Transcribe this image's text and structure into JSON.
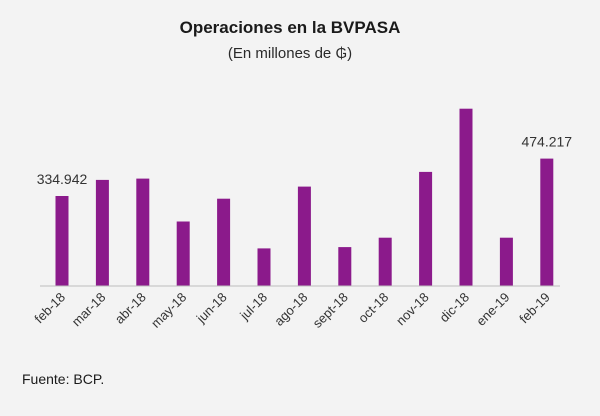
{
  "chart_data": {
    "type": "bar",
    "title": "Operaciones en la BVPASA",
    "subtitle": "(En millones de ₲)",
    "xlabel": "",
    "ylabel": "",
    "categories": [
      "feb-18",
      "mar-18",
      "abr-18",
      "may-18",
      "jun-18",
      "jul-18",
      "ago-18",
      "sept-18",
      "oct-18",
      "nov-18",
      "dic-18",
      "ene-19",
      "feb-19"
    ],
    "values": [
      334942,
      395000,
      400000,
      240000,
      325000,
      140000,
      370000,
      145000,
      180000,
      425000,
      660000,
      180000,
      474217
    ],
    "data_labels": [
      {
        "index": 0,
        "text": "334.942"
      },
      {
        "index": 12,
        "text": "474.217"
      }
    ],
    "ylim": [
      0,
      700000
    ],
    "grid": false,
    "legend": "none",
    "bar_color": "#8b1a8b"
  },
  "footer": {
    "source": "Fuente:  BCP."
  }
}
